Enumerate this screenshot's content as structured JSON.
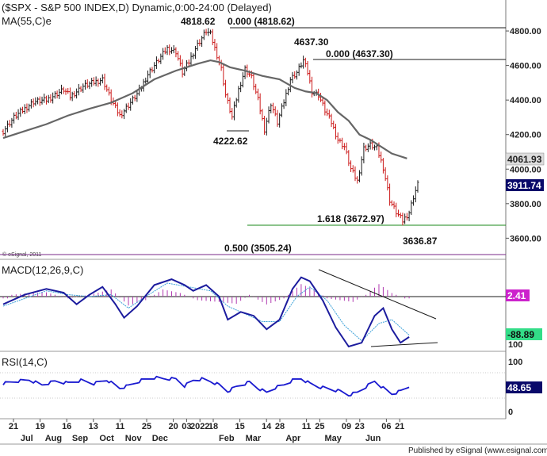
{
  "header": {
    "title": "($SPX - S&P 500 INDEX,D) Dynamic,0:00-24:00 (Delayed)",
    "ma_label": "MA(55,C)e",
    "copyright": "© eSignal, 2011"
  },
  "footer": {
    "text": "Published by eSignal (www.esignal.com)"
  },
  "colors": {
    "price_up": "#1a1a1a",
    "price_down": "#cc1a1a",
    "ma": "#666666",
    "macd": "#1c1c9e",
    "signal": "#3aa0d8",
    "histogram": "#b03ab0",
    "rsi": "#1a1ad0",
    "fib_green": "#1a8a1a",
    "fib_purple": "#7a2a8a",
    "last_tag_bg": "#0a0a6a"
  },
  "chart_data": [
    {
      "type": "ohlc",
      "panel": "price",
      "ylim": [
        3500,
        4830
      ],
      "yticks": [
        "4800.00",
        "4600.00",
        "4400.00",
        "4200.00",
        "4000.00",
        "3800.00",
        "3600.00"
      ],
      "x_labels": [
        "21",
        "Jul",
        "19",
        "Aug",
        "16",
        "Sep",
        "13",
        "Oct",
        "11",
        "Nov",
        "25",
        "Dec",
        "20",
        "03",
        "2022",
        "18",
        "Feb",
        "15",
        "Mar",
        "14",
        "28",
        "Apr",
        "11",
        "25",
        "May",
        "09",
        "23",
        "Jun",
        "06",
        "21"
      ],
      "price_path": [
        [
          0,
          4220
        ],
        [
          5,
          4300
        ],
        [
          14,
          4390
        ],
        [
          20,
          4400
        ],
        [
          28,
          4460
        ],
        [
          31,
          4420
        ],
        [
          37,
          4480
        ],
        [
          46,
          4520
        ],
        [
          50,
          4400
        ],
        [
          54,
          4310
        ],
        [
          58,
          4370
        ],
        [
          63,
          4450
        ],
        [
          67,
          4550
        ],
        [
          70,
          4600
        ],
        [
          73,
          4650
        ],
        [
          76,
          4700
        ],
        [
          80,
          4680
        ],
        [
          83,
          4560
        ],
        [
          86,
          4620
        ],
        [
          89,
          4700
        ],
        [
          92,
          4760
        ],
        [
          94,
          4800
        ],
        [
          96,
          4780
        ],
        [
          98,
          4700
        ],
        [
          101,
          4580
        ],
        [
          103,
          4430
        ],
        [
          106,
          4300
        ],
        [
          109,
          4460
        ],
        [
          112,
          4580
        ],
        [
          115,
          4530
        ],
        [
          118,
          4400
        ],
        [
          121,
          4230
        ],
        [
          124,
          4380
        ],
        [
          127,
          4270
        ],
        [
          130,
          4390
        ],
        [
          133,
          4520
        ],
        [
          136,
          4560
        ],
        [
          139,
          4630
        ],
        [
          141,
          4560
        ],
        [
          143,
          4450
        ],
        [
          146,
          4430
        ],
        [
          149,
          4340
        ],
        [
          152,
          4270
        ],
        [
          155,
          4170
        ],
        [
          158,
          4130
        ],
        [
          161,
          4000
        ],
        [
          164,
          3930
        ],
        [
          167,
          4120
        ],
        [
          170,
          4140
        ],
        [
          173,
          4120
        ],
        [
          176,
          4010
        ],
        [
          179,
          3820
        ],
        [
          182,
          3750
        ],
        [
          185,
          3700
        ],
        [
          188,
          3750
        ],
        [
          190,
          3840
        ],
        [
          192,
          3911.74
        ]
      ],
      "moving_average": {
        "name": "MA(55,C)e",
        "path": [
          [
            0,
            4180
          ],
          [
            10,
            4220
          ],
          [
            20,
            4260
          ],
          [
            30,
            4310
          ],
          [
            40,
            4350
          ],
          [
            50,
            4385
          ],
          [
            60,
            4440
          ],
          [
            70,
            4520
          ],
          [
            80,
            4570
          ],
          [
            90,
            4610
          ],
          [
            96,
            4630
          ],
          [
            100,
            4620
          ],
          [
            105,
            4590
          ],
          [
            112,
            4570
          ],
          [
            120,
            4540
          ],
          [
            128,
            4520
          ],
          [
            135,
            4470
          ],
          [
            140,
            4450
          ],
          [
            145,
            4440
          ],
          [
            150,
            4400
          ],
          [
            155,
            4330
          ],
          [
            160,
            4280
          ],
          [
            165,
            4200
          ],
          [
            170,
            4170
          ],
          [
            175,
            4130
          ],
          [
            180,
            4090
          ],
          [
            187,
            4061.93
          ]
        ]
      },
      "levels": [
        {
          "label": "0.000 (4818.62)",
          "value": 4818.62
        },
        {
          "label": "0.000 (4637.30)",
          "value": 4637.3
        },
        {
          "label": "1.618 (3672.97)",
          "value": 3672.97
        },
        {
          "label": "0.500 (3505.24)",
          "value": 3505.24
        }
      ],
      "annotations": [
        "4818.62",
        "4637.30",
        "4222.62",
        "3636.87"
      ],
      "last_values": {
        "ma": "4061.93",
        "price": "3911.74"
      }
    },
    {
      "type": "line",
      "panel": "macd",
      "title": "MACD(12,26,9,C)",
      "ylim": [
        -1,
        1
      ],
      "last_values": {
        "macd": "2.41",
        "signal": "-88.89",
        "tick": "100"
      },
      "series": [
        {
          "name": "MACD",
          "values": [
            [
              0,
              0.1
            ],
            [
              10,
              0.35
            ],
            [
              20,
              0.5
            ],
            [
              28,
              0.4
            ],
            [
              34,
              0.1
            ],
            [
              40,
              0.35
            ],
            [
              46,
              0.55
            ],
            [
              52,
              0.1
            ],
            [
              56,
              -0.25
            ],
            [
              62,
              0.05
            ],
            [
              70,
              0.6
            ],
            [
              78,
              0.75
            ],
            [
              84,
              0.6
            ],
            [
              88,
              0.45
            ],
            [
              94,
              0.6
            ],
            [
              100,
              0.3
            ],
            [
              104,
              -0.3
            ],
            [
              110,
              -0.1
            ],
            [
              116,
              -0.2
            ],
            [
              122,
              -0.55
            ],
            [
              128,
              -0.3
            ],
            [
              134,
              0.5
            ],
            [
              138,
              0.8
            ],
            [
              142,
              0.7
            ],
            [
              148,
              0.2
            ],
            [
              154,
              -0.5
            ],
            [
              160,
              -1.0
            ],
            [
              166,
              -0.9
            ],
            [
              172,
              -0.2
            ],
            [
              176,
              0.0
            ],
            [
              180,
              -0.55
            ],
            [
              184,
              -0.9
            ],
            [
              188,
              -0.75
            ]
          ]
        },
        {
          "name": "Signal",
          "values": [
            [
              0,
              0.05
            ],
            [
              10,
              0.25
            ],
            [
              20,
              0.45
            ],
            [
              30,
              0.35
            ],
            [
              40,
              0.3
            ],
            [
              50,
              0.35
            ],
            [
              58,
              0.0
            ],
            [
              66,
              0.3
            ],
            [
              76,
              0.65
            ],
            [
              86,
              0.55
            ],
            [
              96,
              0.45
            ],
            [
              104,
              0.05
            ],
            [
              112,
              -0.15
            ],
            [
              120,
              -0.35
            ],
            [
              128,
              -0.35
            ],
            [
              136,
              0.3
            ],
            [
              142,
              0.55
            ],
            [
              150,
              0.2
            ],
            [
              158,
              -0.45
            ],
            [
              166,
              -0.85
            ],
            [
              174,
              -0.4
            ],
            [
              180,
              -0.3
            ],
            [
              188,
              -0.7
            ]
          ]
        },
        {
          "name": "Histogram",
          "values": [
            [
              4,
              0.05
            ],
            [
              12,
              0.1
            ],
            [
              20,
              0.12
            ],
            [
              30,
              -0.05
            ],
            [
              40,
              0.05
            ],
            [
              50,
              0.2
            ],
            [
              58,
              -0.25
            ],
            [
              66,
              -0.1
            ],
            [
              74,
              0.2
            ],
            [
              82,
              0.1
            ],
            [
              90,
              -0.1
            ],
            [
              100,
              -0.15
            ],
            [
              108,
              -0.2
            ],
            [
              114,
              0.05
            ],
            [
              122,
              -0.22
            ],
            [
              130,
              -0.05
            ],
            [
              138,
              0.35
            ],
            [
              144,
              0.2
            ],
            [
              150,
              -0.05
            ],
            [
              156,
              -0.1
            ],
            [
              162,
              -0.15
            ],
            [
              168,
              0.05
            ],
            [
              174,
              0.35
            ],
            [
              180,
              0.1
            ],
            [
              186,
              -0.05
            ]
          ]
        }
      ]
    },
    {
      "type": "line",
      "panel": "rsi",
      "title": "RSI(14,C)",
      "ylim": [
        0,
        100
      ],
      "yticks": [
        "100",
        "50",
        "0"
      ],
      "last_values": {
        "rsi": "48.65"
      },
      "series": [
        {
          "name": "RSI",
          "values": [
            [
              0,
              55
            ],
            [
              6,
              60
            ],
            [
              12,
              63
            ],
            [
              18,
              52
            ],
            [
              24,
              60
            ],
            [
              30,
              56
            ],
            [
              36,
              62
            ],
            [
              42,
              55
            ],
            [
              48,
              63
            ],
            [
              54,
              45
            ],
            [
              58,
              50
            ],
            [
              64,
              62
            ],
            [
              70,
              68
            ],
            [
              74,
              66
            ],
            [
              80,
              65
            ],
            [
              84,
              50
            ],
            [
              88,
              62
            ],
            [
              92,
              65
            ],
            [
              96,
              60
            ],
            [
              100,
              52
            ],
            [
              104,
              38
            ],
            [
              108,
              48
            ],
            [
              114,
              58
            ],
            [
              118,
              45
            ],
            [
              122,
              35
            ],
            [
              126,
              46
            ],
            [
              130,
              52
            ],
            [
              134,
              62
            ],
            [
              138,
              66
            ],
            [
              142,
              55
            ],
            [
              146,
              48
            ],
            [
              152,
              42
            ],
            [
              156,
              38
            ],
            [
              160,
              30
            ],
            [
              164,
              35
            ],
            [
              168,
              48
            ],
            [
              172,
              60
            ],
            [
              176,
              45
            ],
            [
              180,
              32
            ],
            [
              184,
              38
            ],
            [
              188,
              48.65
            ]
          ]
        }
      ]
    }
  ]
}
